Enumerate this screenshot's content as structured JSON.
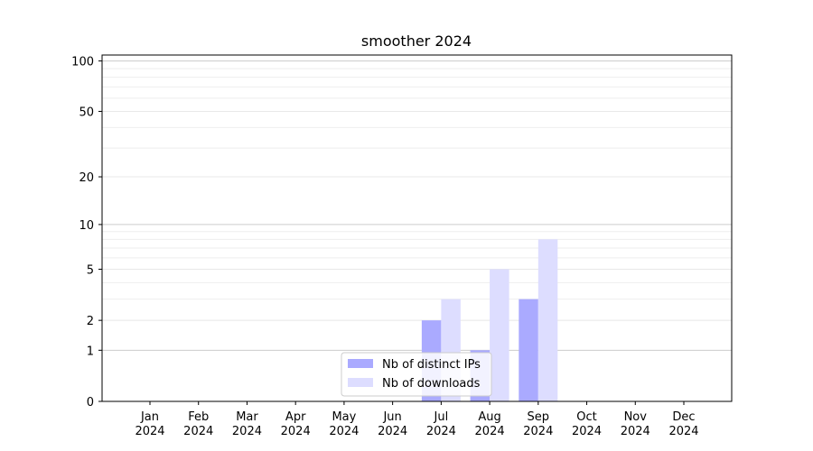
{
  "chart_data": {
    "type": "bar",
    "title": "smoother 2024",
    "xlabel": "",
    "ylabel": "",
    "y_scale": "log(1+y)",
    "ylim": [
      0,
      100
    ],
    "y_ticks": [
      0,
      1,
      2,
      5,
      10,
      20,
      50,
      100
    ],
    "categories": [
      "Jan\n2024",
      "Feb\n2024",
      "Mar\n2024",
      "Apr\n2024",
      "May\n2024",
      "Jun\n2024",
      "Jul\n2024",
      "Aug\n2024",
      "Sep\n2024",
      "Oct\n2024",
      "Nov\n2024",
      "Dec\n2024"
    ],
    "series": [
      {
        "name": "Nb of distinct IPs",
        "color": "#aaaaff",
        "values": [
          0,
          0,
          0,
          0,
          0,
          0,
          2,
          1,
          3,
          0,
          0,
          0
        ]
      },
      {
        "name": "Nb of downloads",
        "color": "#ddddff",
        "values": [
          0,
          0,
          0,
          0,
          0,
          0,
          3,
          5,
          8,
          0,
          0,
          0
        ]
      }
    ],
    "grid": true,
    "legend_position": "lower-center"
  }
}
